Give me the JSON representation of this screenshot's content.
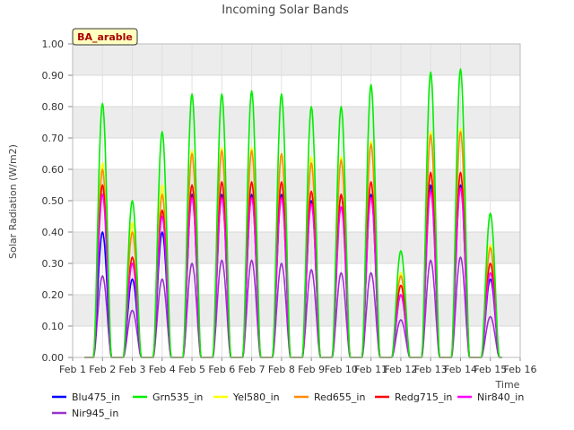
{
  "chart_data": {
    "type": "line",
    "title": "Incoming Solar Bands",
    "xlabel": "Time",
    "ylabel": "Solar Radiation (W/m2)",
    "badge": "BA_arable",
    "ylim": [
      0,
      1.0
    ],
    "xlim": [
      "Feb 1",
      "Feb 16"
    ],
    "x_ticks": [
      "Feb 1",
      "Feb 2",
      "Feb 3",
      "Feb 4",
      "Feb 5",
      "Feb 6",
      "Feb 7",
      "Feb 8",
      "Feb 9",
      "Feb 10",
      "Feb 11",
      "Feb 12",
      "Feb 13",
      "Feb 14",
      "Feb 15",
      "Feb 16"
    ],
    "y_ticks": [
      "0.00",
      "0.10",
      "0.20",
      "0.30",
      "0.40",
      "0.50",
      "0.60",
      "0.70",
      "0.80",
      "0.90",
      "1.00"
    ],
    "grid": true,
    "legend_position": "bottom",
    "daily_dates": [
      "Feb 2",
      "Feb 3",
      "Feb 4",
      "Feb 5",
      "Feb 6",
      "Feb 7",
      "Feb 8",
      "Feb 9",
      "Feb 10",
      "Feb 11",
      "Feb 12",
      "Feb 13",
      "Feb 14",
      "Feb 15"
    ],
    "series": [
      {
        "name": "Blu475_in",
        "color": "#0000ff",
        "daily_peak": [
          0.4,
          0.25,
          0.4,
          0.52,
          0.52,
          0.52,
          0.52,
          0.5,
          0.52,
          0.52,
          0.2,
          0.55,
          0.55,
          0.25
        ]
      },
      {
        "name": "Grn535_in",
        "color": "#00ee00",
        "daily_peak": [
          0.81,
          0.5,
          0.72,
          0.84,
          0.84,
          0.85,
          0.84,
          0.8,
          0.8,
          0.87,
          0.34,
          0.91,
          0.92,
          0.46
        ]
      },
      {
        "name": "Yel580_in",
        "color": "#ffff00",
        "daily_peak": [
          0.62,
          0.43,
          0.55,
          0.66,
          0.67,
          0.67,
          0.65,
          0.64,
          0.64,
          0.69,
          0.27,
          0.72,
          0.73,
          0.36
        ]
      },
      {
        "name": "Red655_in",
        "color": "#ff8c00",
        "daily_peak": [
          0.6,
          0.4,
          0.52,
          0.65,
          0.66,
          0.66,
          0.65,
          0.62,
          0.63,
          0.68,
          0.26,
          0.71,
          0.72,
          0.35
        ]
      },
      {
        "name": "Redg715_in",
        "color": "#ff0000",
        "daily_peak": [
          0.55,
          0.32,
          0.47,
          0.55,
          0.56,
          0.56,
          0.56,
          0.53,
          0.52,
          0.56,
          0.23,
          0.59,
          0.59,
          0.3
        ]
      },
      {
        "name": "Nir840_in",
        "color": "#ff00ff",
        "daily_peak": [
          0.52,
          0.3,
          0.45,
          0.51,
          0.51,
          0.51,
          0.51,
          0.49,
          0.48,
          0.51,
          0.2,
          0.53,
          0.54,
          0.27
        ]
      },
      {
        "name": "Nir945_in",
        "color": "#9933cc",
        "daily_peak": [
          0.26,
          0.15,
          0.25,
          0.3,
          0.31,
          0.31,
          0.3,
          0.28,
          0.27,
          0.27,
          0.12,
          0.31,
          0.32,
          0.13
        ]
      }
    ]
  }
}
